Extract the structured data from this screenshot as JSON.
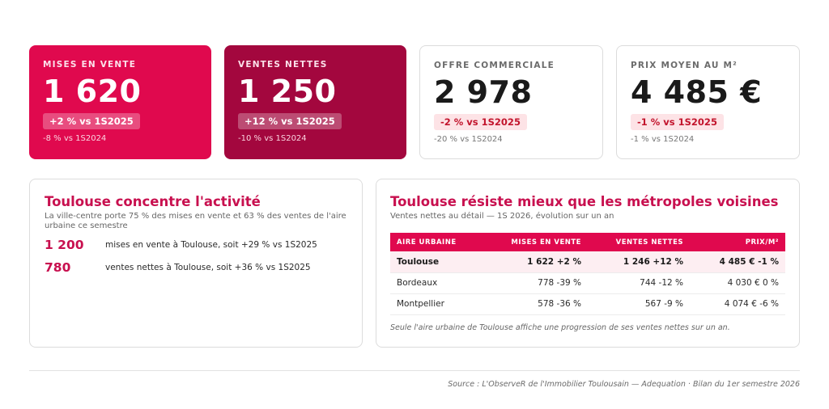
{
  "kpis": [
    {
      "label": "MISES EN VENTE",
      "value": "1 620",
      "badge": "+2 % vs 1S2025",
      "sub": "-8 % vs 1S2024"
    },
    {
      "label": "VENTES NETTES",
      "value": "1 250",
      "badge": "+12 % vs 1S2025",
      "sub": "-10 % vs 1S2024"
    },
    {
      "label": "OFFRE COMMERCIALE",
      "value": "2 978",
      "badge": "-2 % vs 1S2025",
      "sub": "-20 % vs 1S2024"
    },
    {
      "label": "PRIX MOYEN AU M²",
      "value": "4 485 €",
      "badge": "-1 % vs 1S2025",
      "sub": "-1 % vs 1S2024"
    }
  ],
  "left_panel": {
    "title": "Toulouse concentre l'activité",
    "subtitle": "La ville-centre porte 75 % des mises en vente et 63 % des ventes de l'aire urbaine ce semestre",
    "stats": [
      {
        "value": "1 200",
        "text": "mises en vente à Toulouse, soit +29 % vs 1S2025"
      },
      {
        "value": "780",
        "text": "ventes nettes à Toulouse, soit +36 % vs 1S2025"
      }
    ]
  },
  "right_panel": {
    "title": "Toulouse résiste mieux que les métropoles voisines",
    "subtitle": "Ventes nettes au détail — 1S 2026, évolution sur un an",
    "columns": [
      "AIRE URBAINE",
      "MISES EN VENTE",
      "VENTES NETTES",
      "PRIX/M²"
    ],
    "rows": [
      [
        "Toulouse",
        "1 622 +2 %",
        "1 246 +12 %",
        "4 485 € -1 %"
      ],
      [
        "Bordeaux",
        "778 -39 %",
        "744 -12 %",
        "4 030 € 0 %"
      ],
      [
        "Montpellier",
        "578 -36 %",
        "567 -9 %",
        "4 074 € -6 %"
      ]
    ],
    "note": "Seule l'aire urbaine de Toulouse affiche une progression de ses ventes nettes sur un an."
  },
  "footer": {
    "source": "Source : L'ObserveR de l'Immobilier Toulousain — Adequation · Bilan du 1er semestre 2026"
  },
  "colors": {
    "accent": "#e0094e",
    "accent_dark": "#a3073e",
    "title": "#c8104f",
    "negative_badge_bg": "#fde3e6",
    "negative_badge_text": "#c2142c"
  }
}
